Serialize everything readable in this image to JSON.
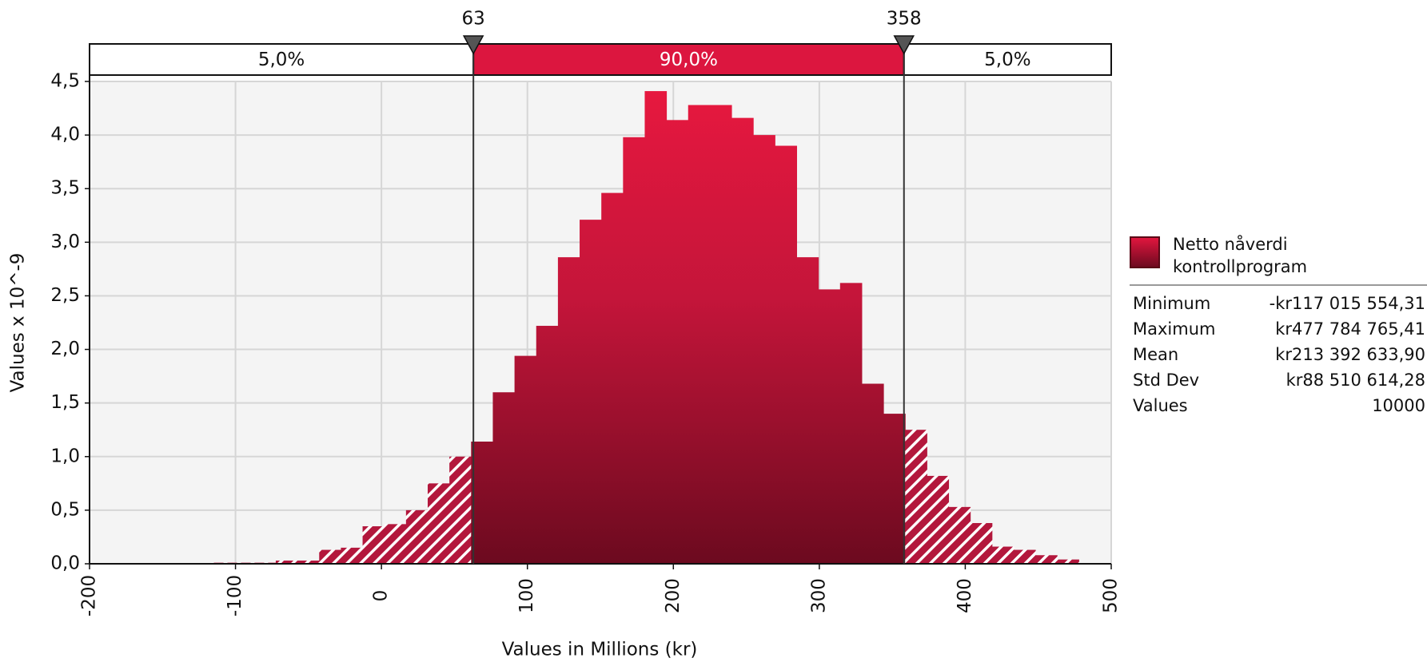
{
  "chart_data": {
    "type": "histogram",
    "xlabel": "Values in Millions (kr)",
    "ylabel": "Values x 10^-9",
    "bins": [
      -117.02,
      -102.14,
      -87.27,
      -72.4,
      -57.53,
      -42.66,
      -27.79,
      -12.92,
      1.95,
      16.82,
      31.69,
      46.56,
      61.43,
      76.3,
      91.17,
      106.04,
      120.91,
      135.78,
      150.65,
      165.52,
      180.38,
      195.25,
      210.12,
      224.99,
      239.86,
      254.73,
      269.6,
      284.47,
      299.34,
      314.21,
      329.08,
      343.95,
      358.82,
      373.69,
      388.56,
      403.43,
      418.3,
      433.17,
      448.04,
      462.91,
      477.78
    ],
    "values": [
      0.01,
      0.01,
      0.01,
      0.03,
      0.03,
      0.13,
      0.15,
      0.35,
      0.37,
      0.5,
      0.75,
      1.0,
      1.14,
      1.6,
      1.94,
      2.22,
      2.86,
      3.21,
      3.46,
      3.98,
      4.41,
      4.14,
      4.28,
      4.28,
      4.16,
      4.0,
      3.9,
      2.86,
      2.56,
      2.62,
      1.68,
      1.4,
      1.25,
      0.82,
      0.53,
      0.38,
      0.16,
      0.13,
      0.08,
      0.04
    ],
    "color": "#d81840",
    "xlim": [
      -200,
      500
    ],
    "xticks": [
      -200,
      -100,
      0,
      100,
      200,
      300,
      400,
      500
    ],
    "ylim": [
      0,
      4.5
    ],
    "yticks": [
      {
        "value": 0,
        "label": "0,0"
      },
      {
        "value": 0.5,
        "label": "0,5"
      },
      {
        "value": 1,
        "label": "1,0"
      },
      {
        "value": 1.5,
        "label": "1,5"
      },
      {
        "value": 2,
        "label": "2,0"
      },
      {
        "value": 2.5,
        "label": "2,5"
      },
      {
        "value": 3,
        "label": "3,0"
      },
      {
        "value": 3.5,
        "label": "3,5"
      },
      {
        "value": 4,
        "label": "4,0"
      },
      {
        "value": 4.5,
        "label": "4,5"
      }
    ],
    "grid": true,
    "delimiters": [
      63,
      358
    ],
    "regions": {
      "values": [
        5,
        90,
        5
      ],
      "value_labels": [
        "5,0%",
        "90,0%",
        "5,0%"
      ]
    },
    "legend": {
      "name": "Netto nåverdi kontrollprogram",
      "stats": [
        [
          "Minimum",
          "-kr117 015 554,31"
        ],
        [
          "Maximum",
          "kr477 784 765,41"
        ],
        [
          "Mean",
          "kr213 392 633,90"
        ],
        [
          "Std Dev",
          "kr88 510 614,28"
        ],
        [
          "Values",
          "10000"
        ]
      ]
    }
  }
}
